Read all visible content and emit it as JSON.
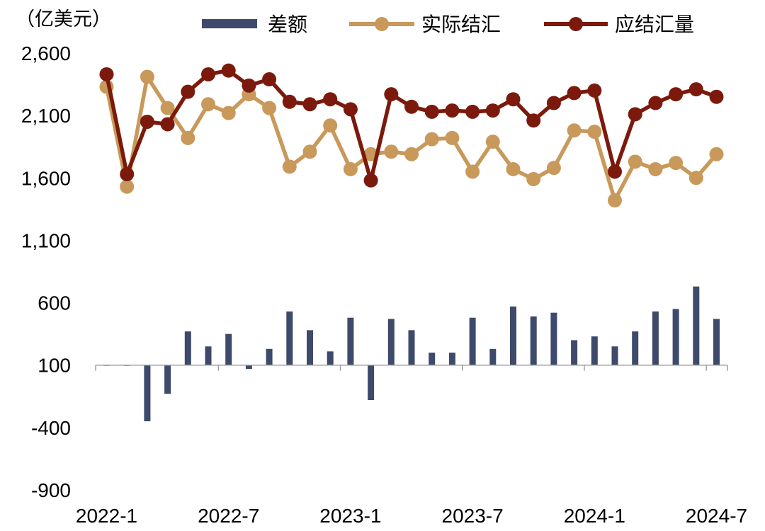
{
  "chart_data": {
    "type": "bar+line",
    "unit_label": "（亿美元）",
    "y_ticks": [
      "2,600",
      "2,100",
      "1,600",
      "1,100",
      "600",
      "100",
      "-400",
      "-900"
    ],
    "y_tick_values": [
      2600,
      2100,
      1600,
      1100,
      600,
      100,
      -400,
      -900
    ],
    "ylim": [
      -900,
      2600
    ],
    "x_tick_labels": [
      "2022-1",
      "2022-7",
      "2023-1",
      "2023-7",
      "2024-1",
      "2024-7"
    ],
    "x_tick_index": [
      0,
      6,
      12,
      18,
      24,
      30
    ],
    "categories_count": 31,
    "legend": [
      {
        "name": "差额",
        "style": "bar",
        "color": "#3d4a6b"
      },
      {
        "name": "实际结汇",
        "style": "line",
        "color": "#c8995a"
      },
      {
        "name": "应结汇量",
        "style": "line",
        "color": "#7b1a0c"
      }
    ],
    "series": [
      {
        "name": "差额",
        "type": "bar",
        "color": "#3d4a6b",
        "values": [
          100,
          100,
          -350,
          -130,
          370,
          250,
          350,
          70,
          230,
          530,
          380,
          210,
          480,
          -180,
          470,
          380,
          200,
          200,
          480,
          230,
          570,
          490,
          520,
          300,
          330,
          250,
          370,
          530,
          550,
          730,
          470
        ]
      },
      {
        "name": "实际结汇",
        "type": "line",
        "color": "#c8995a",
        "values": [
          2330,
          1530,
          2410,
          2160,
          1920,
          2190,
          2120,
          2270,
          2160,
          1690,
          1810,
          2020,
          1670,
          1790,
          1810,
          1790,
          1910,
          1920,
          1650,
          1890,
          1670,
          1590,
          1680,
          1980,
          1970,
          1420,
          1730,
          1670,
          1720,
          1600,
          1790
        ]
      },
      {
        "name": "应结汇量",
        "type": "line",
        "color": "#7b1a0c",
        "values": [
          2430,
          1630,
          2050,
          2030,
          2290,
          2430,
          2460,
          2340,
          2390,
          2210,
          2190,
          2230,
          2150,
          1580,
          2270,
          2170,
          2130,
          2140,
          2130,
          2140,
          2230,
          2060,
          2200,
          2280,
          2300,
          1650,
          2110,
          2200,
          2270,
          2310,
          2250
        ]
      }
    ]
  }
}
